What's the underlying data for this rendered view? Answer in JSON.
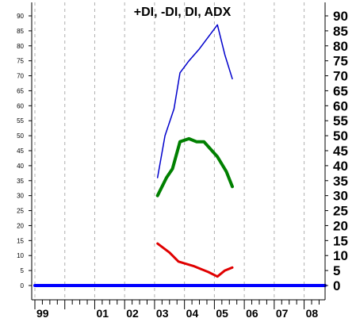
{
  "chart_data": {
    "type": "line",
    "title": "+DI, -DI, DI, ADX",
    "xlabel": "",
    "ylabel": "",
    "ylim": [
      0,
      95
    ],
    "yticks": [
      0,
      5,
      10,
      15,
      20,
      25,
      30,
      35,
      40,
      45,
      50,
      55,
      60,
      65,
      70,
      75,
      80,
      85,
      90
    ],
    "xticks": [
      "99",
      "01",
      "02",
      "03",
      "04",
      "05",
      "06",
      "07",
      "08"
    ],
    "xlim": [
      1999.0,
      2008.7
    ],
    "grid": "vertical dashed",
    "series": [
      {
        "color": "#0000cc",
        "x": [
          2003.1,
          2003.35,
          2003.65,
          2003.85,
          2004.15,
          2004.5,
          2005.1,
          2005.35,
          2005.6
        ],
        "values": [
          36,
          50,
          59,
          71,
          75,
          79,
          87,
          77,
          69
        ]
      },
      {
        "color": "#008000",
        "x": [
          2003.1,
          2003.4,
          2003.6,
          2003.85,
          2004.15,
          2004.4,
          2004.65,
          2005.1,
          2005.4,
          2005.6
        ],
        "values": [
          30,
          36,
          39,
          48,
          49,
          48,
          48,
          43,
          38,
          33
        ]
      },
      {
        "color": "#e00000",
        "x": [
          2003.1,
          2003.5,
          2003.8,
          2004.3,
          2004.8,
          2005.1,
          2005.35,
          2005.6
        ],
        "values": [
          14,
          11,
          8,
          6.5,
          4.5,
          3,
          5,
          6
        ]
      },
      {
        "color": "#0000ff",
        "x": [
          1999.0,
          2008.7
        ],
        "values": [
          0,
          0
        ]
      }
    ]
  }
}
